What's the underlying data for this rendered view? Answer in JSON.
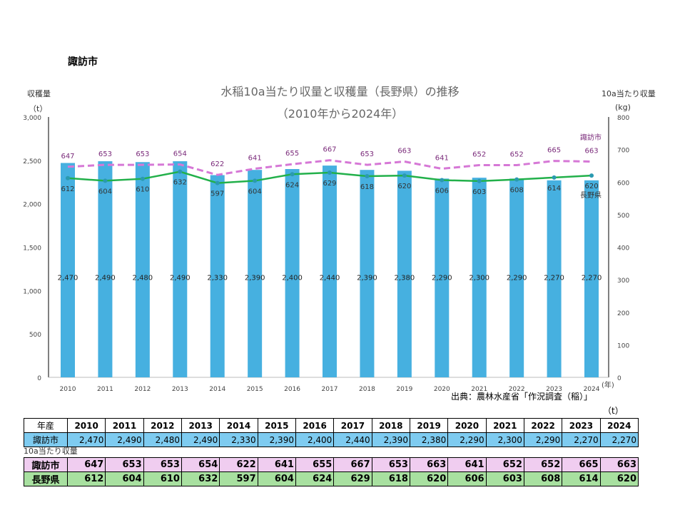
{
  "city": "諏訪市",
  "source": "出典：農林水産省「作況調査（稲）」",
  "table_unit": "（t）",
  "table_section_label": "10a当たり収量",
  "table_header": "年産",
  "colors": {
    "bar": "#46b0e0",
    "suwa_line": "#d678d6",
    "nagano_line": "#22b04a",
    "suwa_cell": "#f0cdf0",
    "nagano_cell": "#a8e0a0",
    "harvest_cell": "#7ecbf0"
  },
  "chart_data": {
    "type": "bar+line",
    "title": "水稲10a当たり収量と収穫量（長野県）の推移",
    "subtitle": "（2010年から2024年）",
    "ylabel_left": "収穫量",
    "ylabel_left_unit": "（t）",
    "ylabel_right": "10a当たり収量",
    "ylabel_right_unit": "(kg)",
    "xlabel_unit": "(年)",
    "ylim_left": [
      0,
      3000
    ],
    "yticks_left": [
      "0",
      "500",
      "1,000",
      "1,500",
      "2,000",
      "2,500",
      "3,000"
    ],
    "ylim_right": [
      0,
      800
    ],
    "yticks_right": [
      "0",
      "100",
      "200",
      "300",
      "400",
      "500",
      "600",
      "700",
      "800"
    ],
    "categories": [
      "2010",
      "2011",
      "2012",
      "2013",
      "2014",
      "2015",
      "2016",
      "2017",
      "2018",
      "2019",
      "2020",
      "2021",
      "2022",
      "2023",
      "2024"
    ],
    "bars": {
      "name": "諏訪市",
      "values": [
        2470,
        2490,
        2480,
        2490,
        2330,
        2390,
        2400,
        2440,
        2390,
        2380,
        2290,
        2300,
        2290,
        2270,
        2270
      ],
      "labels": [
        "2,470",
        "2,490",
        "2,480",
        "2,490",
        "2,330",
        "2,390",
        "2,400",
        "2,440",
        "2,390",
        "2,380",
        "2,290",
        "2,300",
        "2,290",
        "2,270",
        "2,270"
      ]
    },
    "series": [
      {
        "name": "諏訪市",
        "values": [
          647,
          653,
          653,
          654,
          622,
          641,
          655,
          667,
          653,
          663,
          641,
          652,
          652,
          665,
          663
        ]
      },
      {
        "name": "長野県",
        "values": [
          612,
          604,
          610,
          632,
          597,
          604,
          624,
          629,
          618,
          620,
          606,
          603,
          608,
          614,
          620
        ]
      }
    ],
    "grid": false
  }
}
